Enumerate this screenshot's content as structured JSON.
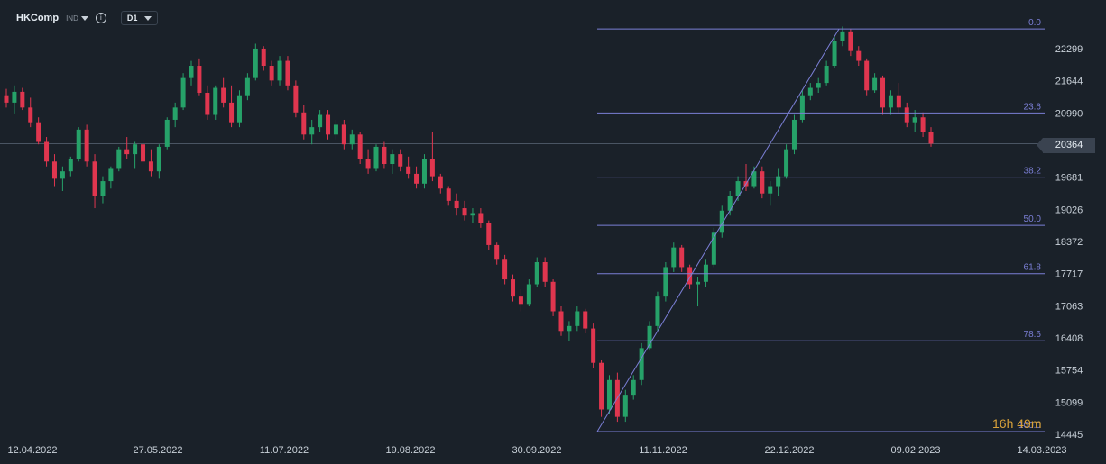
{
  "header": {
    "symbol": "HKComp",
    "exchange": "IND",
    "timeframe": "D1"
  },
  "current_price_label": "20364",
  "timer": "16h 49m",
  "chart_data": {
    "type": "candlestick",
    "y_axis": {
      "ticks": [
        22299,
        21644,
        20990,
        20364,
        19681,
        19026,
        18372,
        17717,
        17063,
        16408,
        15754,
        15099,
        14445
      ],
      "tick_labels": [
        "22299",
        "21644",
        "20990",
        "20364",
        "19681",
        "19026",
        "18372",
        "17717",
        "17063",
        "16408",
        "15754",
        "15099",
        "14445"
      ]
    },
    "x_axis": {
      "tick_labels": [
        "12.04.2022",
        "27.05.2022",
        "11.07.2022",
        "19.08.2022",
        "30.09.2022",
        "11.11.2022",
        "22.12.2022",
        "09.02.2023",
        "14.03.2023"
      ]
    },
    "current_price": 20364,
    "fibonacci": {
      "levels": [
        {
          "label": "0.0",
          "price": 22700
        },
        {
          "label": "23.6",
          "price": 20990
        },
        {
          "label": "38.2",
          "price": 19681
        },
        {
          "label": "50.0",
          "price": 18700
        },
        {
          "label": "61.8",
          "price": 17717
        },
        {
          "label": "78.6",
          "price": 16350
        },
        {
          "label": "100.0",
          "price": 14500
        }
      ]
    },
    "series": [
      {
        "values": [
          [
            21350,
            21480,
            21100,
            21200
          ],
          [
            21200,
            21550,
            20980,
            21420
          ],
          [
            21420,
            21500,
            21050,
            21100
          ],
          [
            21100,
            21300,
            20700,
            20800
          ],
          [
            20800,
            20900,
            20350,
            20400
          ],
          [
            20400,
            20500,
            19900,
            20000
          ],
          [
            20000,
            20150,
            19500,
            19650
          ],
          [
            19650,
            19900,
            19400,
            19800
          ],
          [
            19800,
            20100,
            19700,
            20050
          ],
          [
            20050,
            20700,
            20000,
            20650
          ],
          [
            20650,
            20750,
            19900,
            20000
          ],
          [
            20000,
            20150,
            19050,
            19300
          ],
          [
            19300,
            19700,
            19150,
            19600
          ],
          [
            19600,
            19900,
            19450,
            19850
          ],
          [
            19850,
            20300,
            19800,
            20250
          ],
          [
            20250,
            20500,
            20050,
            20150
          ],
          [
            20150,
            20400,
            19850,
            20350
          ],
          [
            20350,
            20450,
            19950,
            20000
          ],
          [
            20000,
            20250,
            19700,
            19800
          ],
          [
            19800,
            20350,
            19650,
            20300
          ],
          [
            20300,
            20900,
            20250,
            20850
          ],
          [
            20850,
            21200,
            20700,
            21100
          ],
          [
            21100,
            21800,
            21050,
            21700
          ],
          [
            21700,
            22050,
            21550,
            21950
          ],
          [
            21950,
            22100,
            21350,
            21400
          ],
          [
            21400,
            21550,
            20850,
            20950
          ],
          [
            20950,
            21550,
            20850,
            21500
          ],
          [
            21500,
            21700,
            21100,
            21200
          ],
          [
            21200,
            21550,
            20700,
            20800
          ],
          [
            20800,
            21450,
            20700,
            21350
          ],
          [
            21350,
            21800,
            21250,
            21700
          ],
          [
            21700,
            22400,
            21650,
            22300
          ],
          [
            22300,
            22350,
            21850,
            21950
          ],
          [
            21950,
            22050,
            21550,
            21650
          ],
          [
            21650,
            22150,
            21550,
            22050
          ],
          [
            22050,
            22150,
            21450,
            21550
          ],
          [
            21550,
            21650,
            20900,
            21000
          ],
          [
            21000,
            21150,
            20450,
            20550
          ],
          [
            20550,
            20850,
            20350,
            20700
          ],
          [
            20700,
            21050,
            20600,
            20950
          ],
          [
            20950,
            21050,
            20450,
            20550
          ],
          [
            20550,
            20850,
            20450,
            20750
          ],
          [
            20750,
            20850,
            20250,
            20350
          ],
          [
            20350,
            20650,
            20250,
            20550
          ],
          [
            20550,
            20600,
            19950,
            20050
          ],
          [
            20050,
            20250,
            19750,
            19850
          ],
          [
            19850,
            20350,
            19800,
            20300
          ],
          [
            20300,
            20400,
            19850,
            19950
          ],
          [
            19950,
            20250,
            19750,
            20150
          ],
          [
            20150,
            20250,
            19800,
            19900
          ],
          [
            19900,
            20100,
            19650,
            19750
          ],
          [
            19750,
            19900,
            19450,
            19550
          ],
          [
            19550,
            20150,
            19450,
            20050
          ],
          [
            20050,
            20600,
            19600,
            19700
          ],
          [
            19700,
            19750,
            19350,
            19450
          ],
          [
            19450,
            19500,
            19100,
            19200
          ],
          [
            19200,
            19350,
            18900,
            19050
          ],
          [
            19050,
            19200,
            18800,
            18900
          ],
          [
            18900,
            19050,
            18750,
            18950
          ],
          [
            18950,
            19050,
            18650,
            18750
          ],
          [
            18750,
            18800,
            18200,
            18300
          ],
          [
            18300,
            18350,
            17900,
            18000
          ],
          [
            18000,
            18100,
            17500,
            17600
          ],
          [
            17600,
            17700,
            17150,
            17250
          ],
          [
            17250,
            17400,
            16950,
            17100
          ],
          [
            17100,
            17600,
            17050,
            17500
          ],
          [
            17500,
            18050,
            17450,
            17950
          ],
          [
            17950,
            18050,
            17450,
            17550
          ],
          [
            17550,
            17600,
            16850,
            16950
          ],
          [
            16950,
            17050,
            16450,
            16550
          ],
          [
            16550,
            16750,
            16350,
            16650
          ],
          [
            16650,
            17050,
            16550,
            16950
          ],
          [
            16950,
            17000,
            16500,
            16600
          ],
          [
            16600,
            16700,
            15800,
            15900
          ],
          [
            15900,
            15950,
            14800,
            14950
          ],
          [
            14950,
            15650,
            14850,
            15550
          ],
          [
            15550,
            15700,
            14700,
            14800
          ],
          [
            14800,
            15350,
            14700,
            15250
          ],
          [
            15250,
            15650,
            15150,
            15550
          ],
          [
            15550,
            16300,
            15450,
            16200
          ],
          [
            16200,
            16750,
            16150,
            16650
          ],
          [
            16650,
            17350,
            16550,
            17250
          ],
          [
            17250,
            17950,
            17150,
            17850
          ],
          [
            17850,
            18350,
            17750,
            18250
          ],
          [
            18250,
            18300,
            17750,
            17850
          ],
          [
            17850,
            17900,
            17400,
            17500
          ],
          [
            17500,
            17650,
            17050,
            17550
          ],
          [
            17550,
            18000,
            17450,
            17900
          ],
          [
            17900,
            18650,
            17850,
            18550
          ],
          [
            18550,
            19100,
            18450,
            19000
          ],
          [
            19000,
            19400,
            18900,
            19300
          ],
          [
            19300,
            19700,
            19200,
            19600
          ],
          [
            19600,
            19950,
            19400,
            19500
          ],
          [
            19500,
            19900,
            19450,
            19800
          ],
          [
            19800,
            19900,
            19250,
            19350
          ],
          [
            19350,
            19600,
            19100,
            19500
          ],
          [
            19500,
            19850,
            19300,
            19700
          ],
          [
            19700,
            20350,
            19650,
            20250
          ],
          [
            20250,
            20950,
            20150,
            20850
          ],
          [
            20850,
            21450,
            20800,
            21350
          ],
          [
            21350,
            21600,
            21250,
            21500
          ],
          [
            21500,
            21700,
            21400,
            21600
          ],
          [
            21600,
            22050,
            21550,
            21950
          ],
          [
            21950,
            22550,
            21900,
            22450
          ],
          [
            22450,
            22750,
            22350,
            22650
          ],
          [
            22650,
            22700,
            22150,
            22250
          ],
          [
            22250,
            22350,
            21950,
            22050
          ],
          [
            22050,
            22100,
            21350,
            21450
          ],
          [
            21450,
            21800,
            21400,
            21700
          ],
          [
            21700,
            21750,
            20950,
            21100
          ],
          [
            21100,
            21450,
            20950,
            21350
          ],
          [
            21350,
            21600,
            21000,
            21100
          ],
          [
            21100,
            21200,
            20700,
            20800
          ],
          [
            20800,
            21050,
            20600,
            20900
          ],
          [
            20900,
            21000,
            20500,
            20600
          ],
          [
            20600,
            20700,
            20300,
            20364
          ]
        ]
      }
    ]
  }
}
